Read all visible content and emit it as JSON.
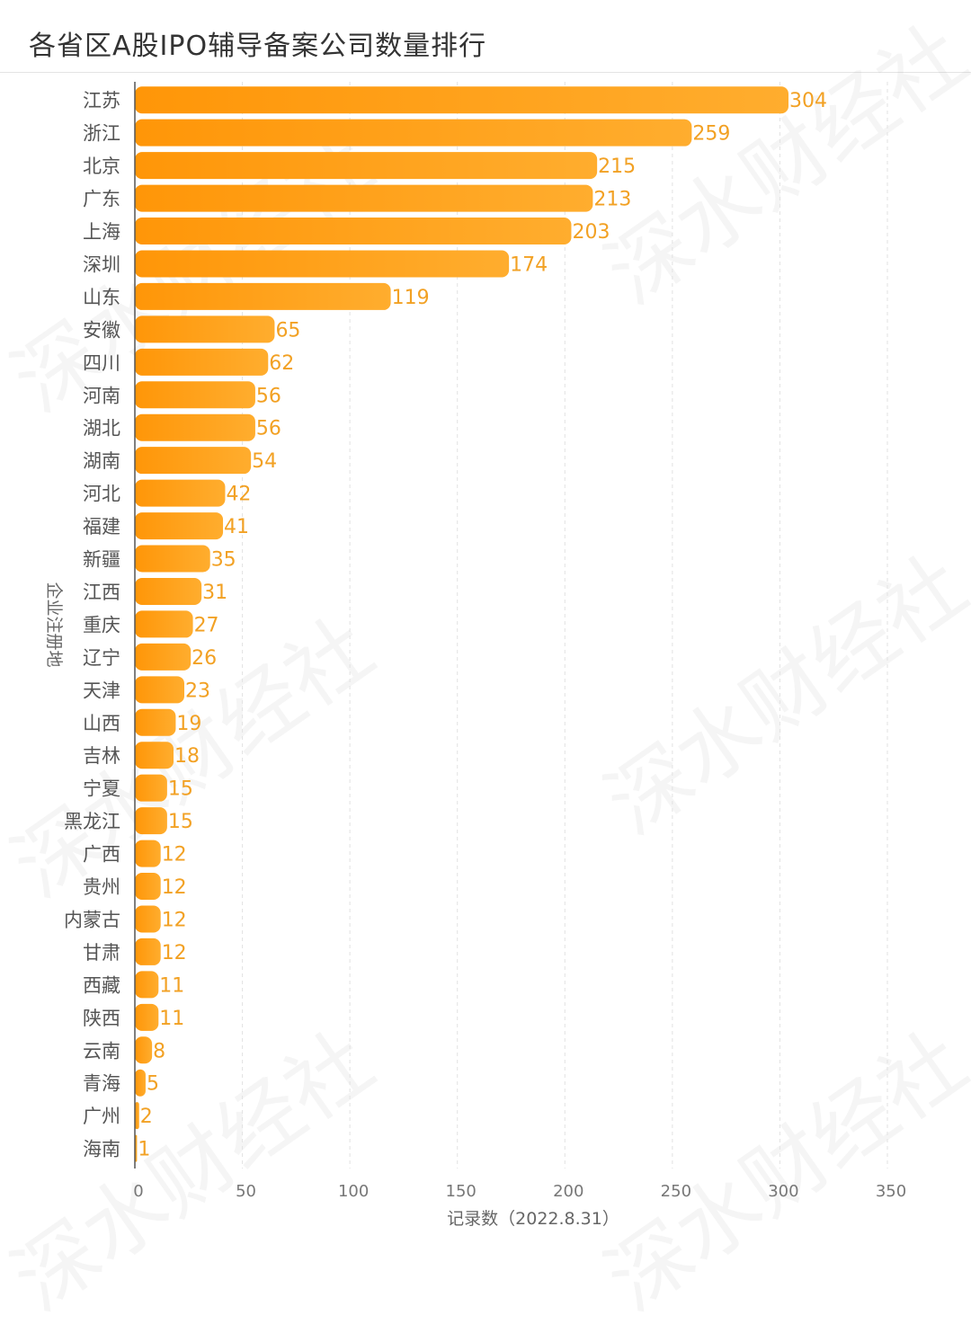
{
  "chart_data": {
    "type": "bar",
    "orientation": "horizontal",
    "title": "各省区A股IPO辅导备案公司数量排行",
    "xlabel": "记录数（2022.8.31）",
    "ylabel": "企业注册地",
    "xlim": [
      0,
      350
    ],
    "xticks": [
      0,
      50,
      100,
      150,
      200,
      250,
      300,
      350
    ],
    "grid": "vertical dashed",
    "bar_color": "#ff9d0f",
    "value_label_color": "#f2a124",
    "categories": [
      "江苏",
      "浙江",
      "北京",
      "广东",
      "上海",
      "深圳",
      "山东",
      "安徽",
      "四川",
      "河南",
      "湖北",
      "湖南",
      "河北",
      "福建",
      "新疆",
      "江西",
      "重庆",
      "辽宁",
      "天津",
      "山西",
      "吉林",
      "宁夏",
      "黑龙江",
      "广西",
      "贵州",
      "内蒙古",
      "甘肃",
      "西藏",
      "陕西",
      "云南",
      "青海",
      "广州",
      "海南"
    ],
    "values": [
      304,
      259,
      215,
      213,
      203,
      174,
      119,
      65,
      62,
      56,
      56,
      54,
      42,
      41,
      35,
      31,
      27,
      26,
      23,
      19,
      18,
      15,
      15,
      12,
      12,
      12,
      12,
      11,
      11,
      8,
      5,
      2,
      1
    ]
  },
  "watermark": "深水财经社"
}
